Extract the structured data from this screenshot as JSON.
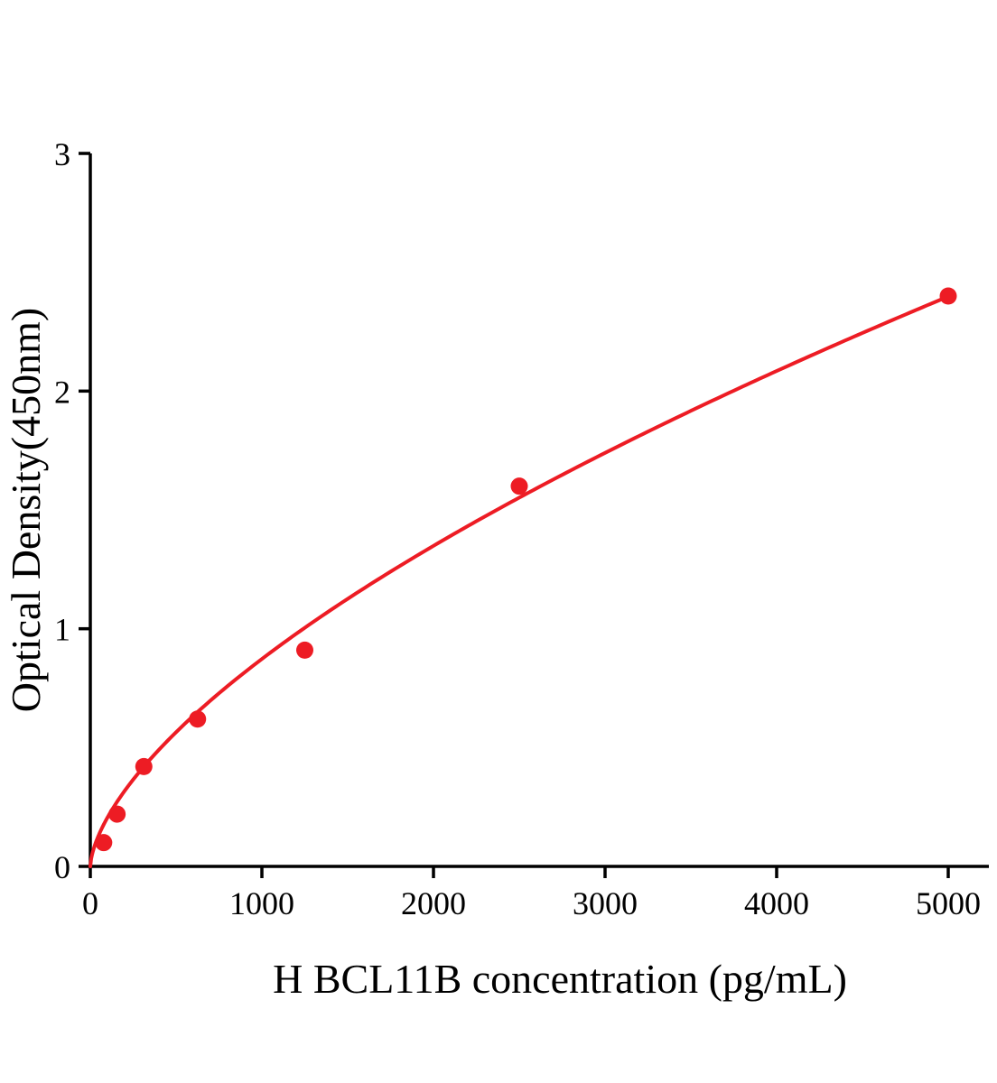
{
  "page": {
    "background": "#ffffff"
  },
  "chart_data": {
    "type": "scatter",
    "title": "",
    "xlabel": "H BCL11B concentration (pg/mL)",
    "ylabel": "Optical Density(450nm)",
    "xlim": [
      0,
      5000
    ],
    "ylim": [
      0,
      3
    ],
    "x_ticks": [
      0,
      1000,
      2000,
      3000,
      4000,
      5000
    ],
    "y_ticks": [
      0,
      1,
      2,
      3
    ],
    "grid": false,
    "legend": "none",
    "series_name": "H BCL11B standard curve",
    "series_color": "#ed1c24",
    "axis_color": "#000000",
    "points": [
      {
        "x": 78,
        "y": 0.1
      },
      {
        "x": 156,
        "y": 0.22
      },
      {
        "x": 312,
        "y": 0.42
      },
      {
        "x": 625,
        "y": 0.62
      },
      {
        "x": 1250,
        "y": 0.91
      },
      {
        "x": 2500,
        "y": 1.6
      },
      {
        "x": 5000,
        "y": 2.4
      }
    ],
    "fit": {
      "type": "power",
      "a": 0.0114,
      "b": 0.628
    }
  }
}
